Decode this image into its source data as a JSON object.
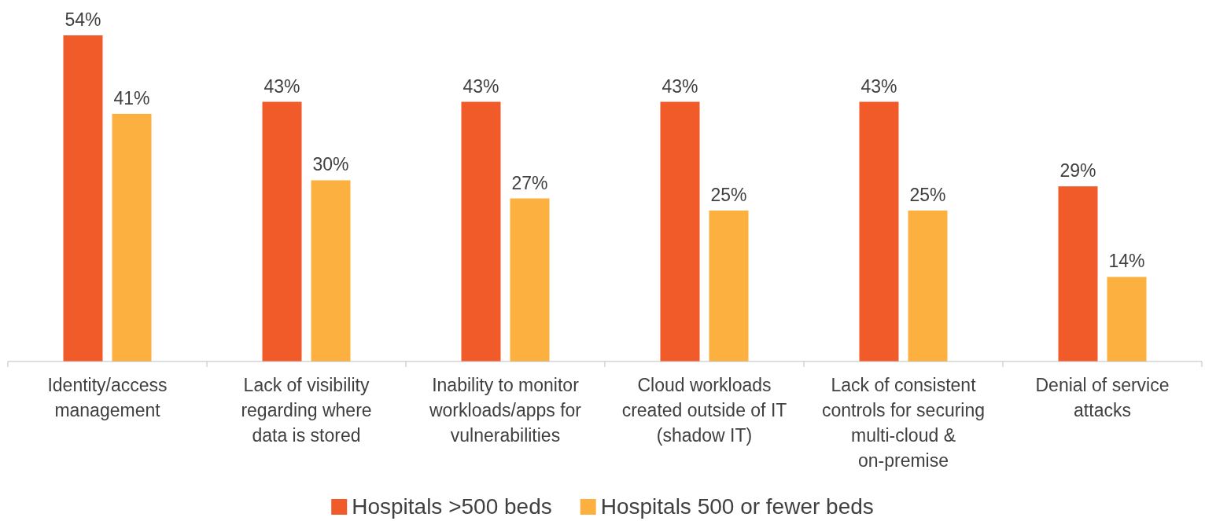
{
  "chart_data": {
    "type": "bar",
    "categories": [
      "Identity/access management",
      "Lack of visibility regarding where data is stored",
      "Inability to monitor workloads/apps for vulnerabilities",
      "Cloud workloads created outside of IT (shadow IT)",
      "Lack of consistent controls for securing multi-cloud & on-premise",
      "Denial of service attacks"
    ],
    "series": [
      {
        "name": "Hospitals >500 beds",
        "color": "#f15a29",
        "values": [
          54,
          43,
          43,
          43,
          43,
          29
        ],
        "value_labels": [
          "54%",
          "43%",
          "43%",
          "43%",
          "43%",
          "29%"
        ]
      },
      {
        "name": "Hospitals 500 or fewer beds",
        "color": "#fbb040",
        "values": [
          41,
          30,
          27,
          25,
          25,
          14
        ],
        "value_labels": [
          "41%",
          "30%",
          "27%",
          "25%",
          "25%",
          "14%"
        ]
      }
    ],
    "legend": "bottom"
  }
}
